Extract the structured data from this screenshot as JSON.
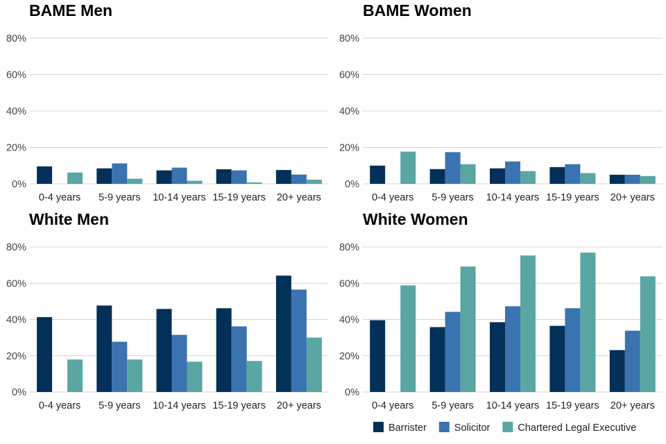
{
  "colors": {
    "Barrister": "#023058",
    "Solicitor": "#3a73b0",
    "Chartered Legal Executive": "#5aa6a3"
  },
  "chart_data": [
    {
      "type": "bar",
      "title": "BAME Men",
      "categories": [
        "0-4 years",
        "5-9 years",
        "10-14 years",
        "15-19 years",
        "20+ years"
      ],
      "yticks": [
        "0%",
        "20%",
        "40%",
        "60%",
        "80%"
      ],
      "ylim": [
        0,
        80
      ],
      "series": [
        {
          "name": "Barrister",
          "values": [
            9.6,
            8.5,
            7.4,
            8.0,
            7.6
          ]
        },
        {
          "name": "Solicitor",
          "values": [
            null,
            11.2,
            8.9,
            7.4,
            5.1
          ]
        },
        {
          "name": "Chartered Legal Executive",
          "values": [
            6.2,
            2.8,
            1.7,
            0.8,
            2.3
          ]
        }
      ]
    },
    {
      "type": "bar",
      "title": "BAME Women",
      "categories": [
        "0-4 years",
        "5-9 years",
        "10-14 years",
        "15-19 years",
        "20+ years"
      ],
      "yticks": [
        "0%",
        "20%",
        "40%",
        "60%",
        "80%"
      ],
      "ylim": [
        0,
        80
      ],
      "series": [
        {
          "name": "Barrister",
          "values": [
            10.0,
            8.1,
            8.5,
            9.2,
            5.0
          ]
        },
        {
          "name": "Solicitor",
          "values": [
            null,
            17.4,
            12.3,
            10.8,
            5.0
          ]
        },
        {
          "name": "Chartered Legal Executive",
          "values": [
            17.7,
            10.8,
            7.0,
            5.9,
            4.3
          ]
        }
      ]
    },
    {
      "type": "bar",
      "title": "White Men",
      "categories": [
        "0-4 years",
        "5-9 years",
        "10-14 years",
        "15-19 years",
        "20+ years"
      ],
      "yticks": [
        "0%",
        "20%",
        "40%",
        "60%",
        "80%"
      ],
      "ylim": [
        0,
        80
      ],
      "series": [
        {
          "name": "Barrister",
          "values": [
            41.3,
            47.7,
            45.8,
            46.2,
            64.2
          ]
        },
        {
          "name": "Solicitor",
          "values": [
            null,
            27.7,
            31.5,
            36.2,
            56.5
          ]
        },
        {
          "name": "Chartered Legal Executive",
          "values": [
            17.9,
            17.9,
            16.7,
            17.1,
            30.0
          ]
        }
      ]
    },
    {
      "type": "bar",
      "title": "White Women",
      "categories": [
        "0-4 years",
        "5-9 years",
        "10-14 years",
        "15-19 years",
        "20+ years"
      ],
      "yticks": [
        "0%",
        "20%",
        "40%",
        "60%",
        "80%"
      ],
      "ylim": [
        0,
        80
      ],
      "series": [
        {
          "name": "Barrister",
          "values": [
            39.6,
            35.8,
            38.5,
            36.5,
            23.1
          ]
        },
        {
          "name": "Solicitor",
          "values": [
            null,
            44.2,
            47.3,
            46.2,
            33.8
          ]
        },
        {
          "name": "Chartered Legal Executive",
          "values": [
            58.8,
            69.2,
            75.3,
            76.9,
            63.8
          ]
        }
      ]
    }
  ],
  "legend": {
    "position": "bottom-right",
    "items": [
      "Barrister",
      "Solicitor",
      "Chartered Legal Executive"
    ]
  }
}
